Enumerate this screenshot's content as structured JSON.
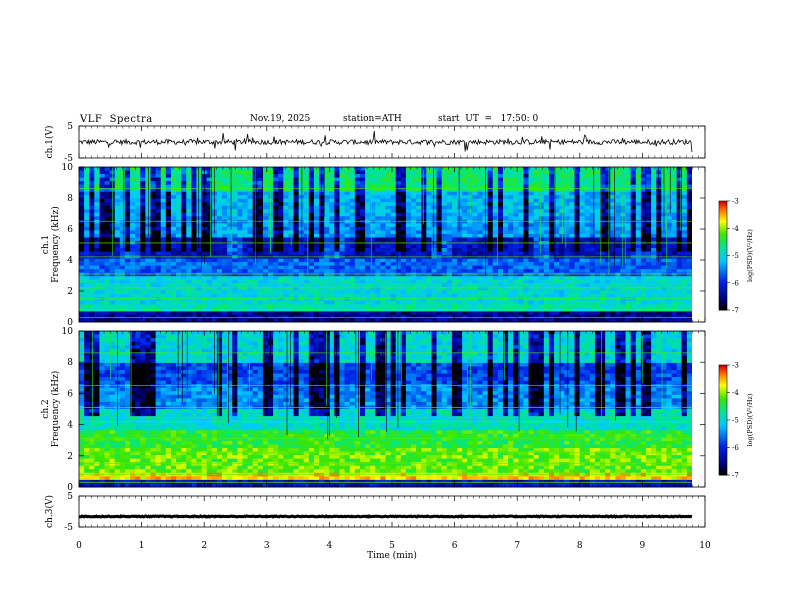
{
  "header": {
    "title": "VLF  Spectra",
    "date": "Nov.19, 2025",
    "station": "station=ATH",
    "start": "start  UT  =   17:50: 0"
  },
  "chart_data": [
    {
      "type": "line",
      "name": "ch1-waveform",
      "ylabel": "ch.1(V)",
      "ylim": [
        -5,
        5
      ],
      "yticks": [
        "5",
        "-5"
      ],
      "xlim": [
        0,
        9.83
      ],
      "note": "broadband waveform, approx. 0 V with noise and spikes"
    },
    {
      "type": "heatmap",
      "name": "ch1-spectrogram",
      "ylabel_line1": "ch.1",
      "ylabel_line2": "Frequency  (kHz)",
      "ylim": [
        0,
        10
      ],
      "yticks": [
        "0",
        "2",
        "4",
        "6",
        "8",
        "10"
      ],
      "xlim": [
        0,
        9.83
      ],
      "colorbar": {
        "label": "log(PSD)(V²/Hz)",
        "range": [
          -7,
          -3
        ],
        "ticks": [
          "-3",
          "-4",
          "-5",
          "-6",
          "-7"
        ]
      }
    },
    {
      "type": "heatmap",
      "name": "ch2-spectrogram",
      "ylabel_line1": "ch.2",
      "ylabel_line2": "Frequency  (kHz)",
      "ylim": [
        0,
        10
      ],
      "yticks": [
        "0",
        "2",
        "4",
        "6",
        "8",
        "10"
      ],
      "xlim": [
        0,
        9.83
      ],
      "colorbar": {
        "label": "log(PSD)(V²/Hz)",
        "range": [
          -7,
          -3
        ],
        "ticks": [
          "-3",
          "-4",
          "-5",
          "-6",
          "-7"
        ]
      }
    },
    {
      "type": "line",
      "name": "ch3-waveform",
      "ylabel": "ch.3(V)",
      "ylim": [
        -5,
        5
      ],
      "yticks": [
        "5",
        "-5"
      ],
      "xlim": [
        0,
        9.83
      ],
      "note": "flat trace near -1.5 V"
    }
  ],
  "x_axis": {
    "label": "Time  (min)",
    "range": [
      0,
      10
    ],
    "ticks": [
      "0",
      "1",
      "2",
      "3",
      "4",
      "5",
      "6",
      "7",
      "8",
      "9",
      "10"
    ]
  }
}
